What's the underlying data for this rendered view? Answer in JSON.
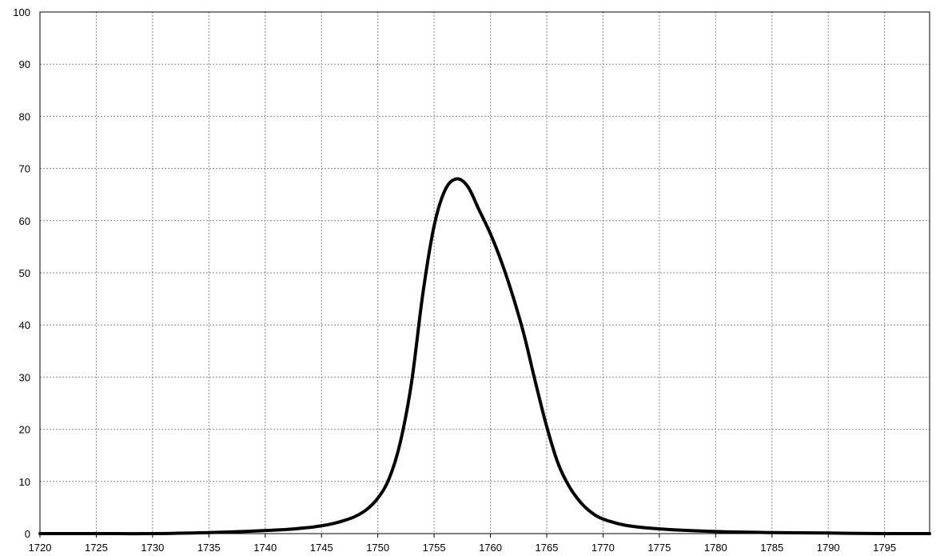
{
  "chart_data": {
    "type": "line",
    "title": "",
    "xlabel": "",
    "ylabel": "",
    "xlim": [
      1720,
      1799
    ],
    "ylim": [
      0,
      100
    ],
    "x_ticks": [
      1720,
      1725,
      1730,
      1735,
      1740,
      1745,
      1750,
      1755,
      1760,
      1765,
      1770,
      1775,
      1780,
      1785,
      1790,
      1795
    ],
    "y_ticks": [
      0,
      10,
      20,
      30,
      40,
      50,
      60,
      70,
      80,
      90,
      100
    ],
    "grid": true,
    "legend": "none",
    "line_color": "#000000",
    "grid_color": "#888888",
    "series": [
      {
        "x": [
          1720,
          1725,
          1730,
          1735,
          1738,
          1740,
          1742,
          1744,
          1745,
          1746,
          1747,
          1748,
          1749,
          1750,
          1751,
          1752,
          1753,
          1754,
          1755,
          1756,
          1757,
          1758,
          1759,
          1760,
          1761,
          1762,
          1763,
          1764,
          1765,
          1766,
          1767,
          1768,
          1769,
          1770,
          1772,
          1775,
          1780,
          1785,
          1790,
          1795,
          1799
        ],
        "y": [
          0,
          0,
          0,
          0.2,
          0.4,
          0.6,
          0.8,
          1.2,
          1.5,
          1.9,
          2.5,
          3.3,
          4.6,
          6.8,
          10.5,
          17.5,
          29,
          46,
          59,
          66,
          68,
          66.5,
          62,
          57.5,
          52,
          45.5,
          38,
          29,
          20.5,
          13.5,
          9,
          6,
          4,
          2.8,
          1.6,
          0.9,
          0.4,
          0.2,
          0.1,
          0,
          0
        ]
      }
    ]
  }
}
